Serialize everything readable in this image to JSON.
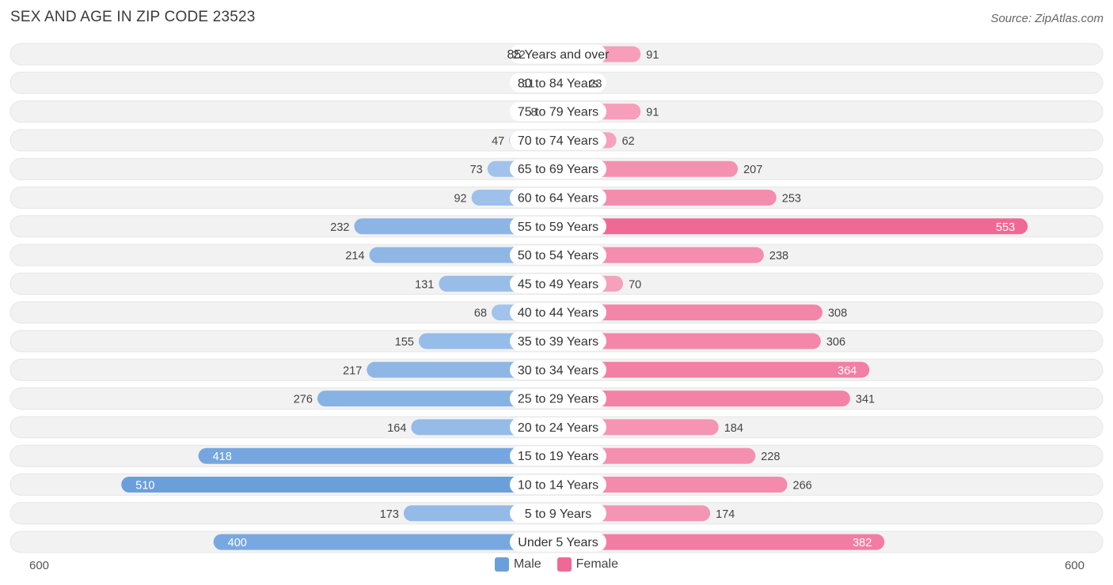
{
  "title": "SEX AND AGE IN ZIP CODE 23523",
  "source": "Source: ZipAtlas.com",
  "colors": {
    "male": "#6a9fdc",
    "male_light": "#a9c8ee",
    "female": "#f06994",
    "female_light": "#f7a9c2",
    "row_bg": "#f2f2f2",
    "label_bg": "#ffffff"
  },
  "legend": {
    "male_label": "Male",
    "female_label": "Female"
  },
  "axis": {
    "left_label": "600",
    "right_label": "600"
  },
  "chart_data": {
    "type": "bar",
    "orientation": "horizontal-diverging",
    "title": "SEX AND AGE IN ZIP CODE 23523",
    "categories": [
      "85 Years and over",
      "80 to 84 Years",
      "75 to 79 Years",
      "70 to 74 Years",
      "65 to 69 Years",
      "60 to 64 Years",
      "55 to 59 Years",
      "50 to 54 Years",
      "45 to 49 Years",
      "40 to 44 Years",
      "35 to 39 Years",
      "30 to 34 Years",
      "25 to 29 Years",
      "20 to 24 Years",
      "15 to 19 Years",
      "10 to 14 Years",
      "5 to 9 Years",
      "Under 5 Years"
    ],
    "series": [
      {
        "name": "Male",
        "values": [
          22,
          11,
          8,
          47,
          73,
          92,
          232,
          214,
          131,
          68,
          155,
          217,
          276,
          164,
          418,
          510,
          173,
          400
        ]
      },
      {
        "name": "Female",
        "values": [
          91,
          23,
          91,
          62,
          207,
          253,
          553,
          238,
          70,
          308,
          306,
          364,
          341,
          184,
          228,
          266,
          174,
          382
        ]
      }
    ],
    "xlim": [
      -600,
      600
    ],
    "legend_position": "bottom-center",
    "grid": false
  }
}
